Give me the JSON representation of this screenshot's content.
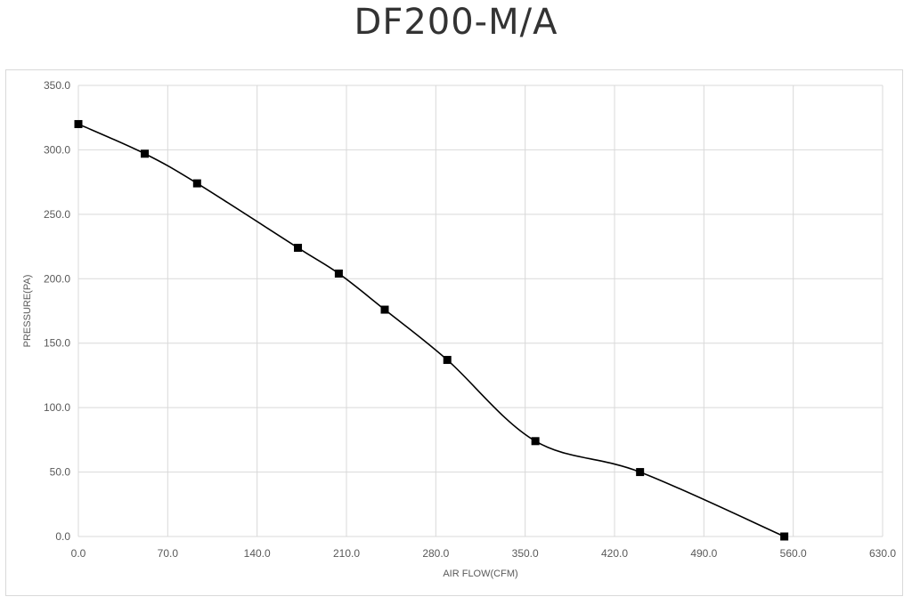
{
  "chart_data": {
    "type": "line",
    "title": "DF200-M/A",
    "xlabel": "AIR FLOW(CFM)",
    "ylabel": "PRESSURE(PA)",
    "xlim": [
      0,
      630
    ],
    "ylim": [
      0,
      350
    ],
    "x_ticks": [
      0,
      70,
      140,
      210,
      280,
      350,
      420,
      490,
      560,
      630
    ],
    "y_ticks": [
      0,
      50,
      100,
      150,
      200,
      250,
      300,
      350
    ],
    "x_tick_labels": [
      "0.0",
      "70.0",
      "140.0",
      "210.0",
      "280.0",
      "350.0",
      "420.0",
      "490.0",
      "560.0",
      "630.0"
    ],
    "y_tick_labels": [
      "0.0",
      "50.0",
      "100.0",
      "150.0",
      "200.0",
      "250.0",
      "300.0",
      "350.0"
    ],
    "grid": true,
    "legend": "none",
    "series": [
      {
        "marker": "square",
        "color": "#000000",
        "x": [
          0,
          52,
          93,
          172,
          204,
          240,
          289,
          358,
          440,
          553
        ],
        "y": [
          320,
          297,
          274,
          224,
          204,
          176,
          137,
          74,
          50,
          0
        ]
      }
    ]
  }
}
